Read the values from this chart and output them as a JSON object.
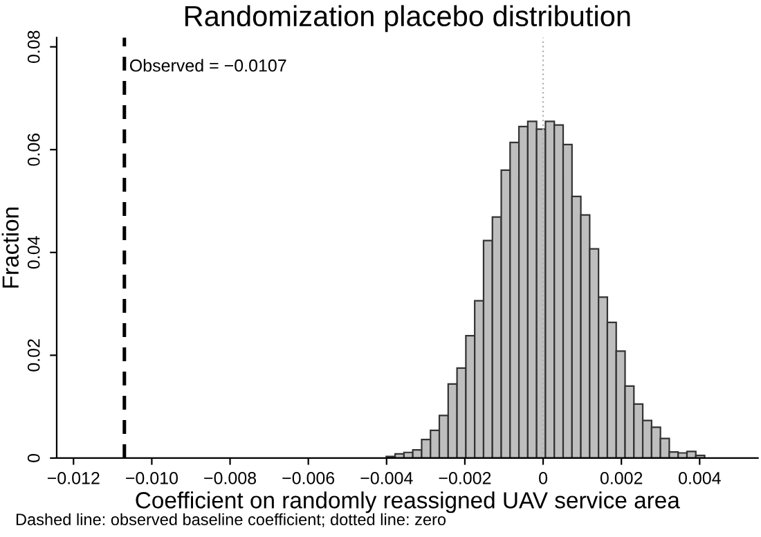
{
  "chart_data": {
    "type": "histogram",
    "title": "Randomization placebo distribution",
    "xlabel": "Coefficient on randomly reassigned UAV service area",
    "ylabel": "Fraction",
    "bins": [
      -0.00446,
      -0.004234,
      -0.004008,
      -0.003782,
      -0.003556,
      -0.00333,
      -0.003104,
      -0.002878,
      -0.002652,
      -0.002426,
      -0.0022,
      -0.001974,
      -0.001748,
      -0.001522,
      -0.001296,
      -0.00107,
      -0.000844,
      -0.000618,
      -0.000392,
      -0.000166,
      6e-05,
      0.000286,
      0.000512,
      0.000738,
      0.000964,
      0.00119,
      0.001416,
      0.001642,
      0.001868,
      0.002094,
      0.00232,
      0.002546,
      0.002772,
      0.002998,
      0.003224,
      0.00345,
      0.003676,
      0.003902,
      0.004128,
      0.004354
    ],
    "values": [
      null,
      null,
      0.0003,
      0.0008,
      0.0011,
      0.0016,
      0.0036,
      0.0054,
      0.0083,
      0.0144,
      0.0175,
      0.0238,
      0.0306,
      0.0423,
      0.0469,
      0.056,
      0.0614,
      0.0645,
      0.0655,
      0.064,
      0.0655,
      0.0648,
      0.061,
      0.0509,
      0.0473,
      0.0407,
      0.0313,
      0.0264,
      0.0208,
      0.014,
      0.0105,
      0.0073,
      0.006,
      0.0038,
      0.0012,
      0.001,
      0.0013,
      0.0005,
      null
    ],
    "color": "#bebebe",
    "xlim": [
      -0.01243,
      0.00549
    ],
    "xticks": [
      {
        "value": -0.012,
        "label": "−0.012"
      },
      {
        "value": -0.01,
        "label": "−0.010"
      },
      {
        "value": -0.008,
        "label": "−0.008"
      },
      {
        "value": -0.006,
        "label": "−0.006"
      },
      {
        "value": -0.004,
        "label": "−0.004"
      },
      {
        "value": -0.002,
        "label": "−0.002"
      },
      0,
      {
        "value": 0.002,
        "label": "0.002"
      },
      {
        "value": 0.004,
        "label": "0.004"
      }
    ],
    "ylim": [
      0,
      0.0818
    ],
    "yticks": [
      0,
      {
        "value": 0.02,
        "label": "0.02"
      },
      {
        "value": 0.04,
        "label": "0.04"
      },
      {
        "value": 0.06,
        "label": "0.06"
      },
      {
        "value": 0.08,
        "label": "0.08"
      }
    ],
    "ref_lines": [
      {
        "axis": "x",
        "value": -0.0107,
        "label": "Observed = −0.0107",
        "color": "#000000",
        "line_style": "dashed"
      },
      {
        "axis": "x",
        "value": 0,
        "label": null,
        "color": "#b0b0b0",
        "line_style": "dotted"
      }
    ],
    "annotations": [
      "Dashed line: observed baseline coefficient; dotted line: zero"
    ],
    "grid": false,
    "legend": false
  }
}
